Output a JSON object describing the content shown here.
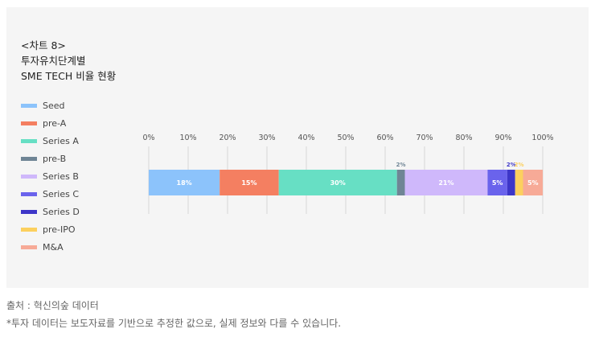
{
  "chart_title": [
    "<차트 8>",
    "투자유치단계별",
    "SME TECH 비율 현황"
  ],
  "chart_data": {
    "type": "bar",
    "orientation": "horizontal",
    "stacked": true,
    "xlim": [
      0,
      100
    ],
    "x_ticks": [
      "0%",
      "10%",
      "20%",
      "30%",
      "40%",
      "50%",
      "60%",
      "70%",
      "80%",
      "90%",
      "100%"
    ],
    "grid": true,
    "legend_position": "left",
    "categories": [
      ""
    ],
    "series": [
      {
        "name": "Seed",
        "values": [
          18
        ],
        "label": "18%",
        "color": "#8cc3fb"
      },
      {
        "name": "pre-A",
        "values": [
          15
        ],
        "label": "15%",
        "color": "#f47f61"
      },
      {
        "name": "Series A",
        "values": [
          30
        ],
        "label": "30%",
        "color": "#67dfc4"
      },
      {
        "name": "pre-B",
        "values": [
          2
        ],
        "label": "2%",
        "color": "#6f8595"
      },
      {
        "name": "Series B",
        "values": [
          21
        ],
        "label": "21%",
        "color": "#cfb8fb"
      },
      {
        "name": "Series C",
        "values": [
          5
        ],
        "label": "5%",
        "color": "#6a63ec"
      },
      {
        "name": "Series D",
        "values": [
          2
        ],
        "label": "2%",
        "color": "#3d36c8"
      },
      {
        "name": "pre-IPO",
        "values": [
          2
        ],
        "label": "2%",
        "color": "#fcd05e"
      },
      {
        "name": "M&A",
        "values": [
          5
        ],
        "label": "5%",
        "color": "#f7aa97"
      }
    ]
  },
  "footer": {
    "source": "출처 : 혁신의숲 데이터",
    "note": "*투자 데이터는 보도자료를 기반으로 추정한 값으로, 실제 정보와 다를 수 있습니다."
  }
}
